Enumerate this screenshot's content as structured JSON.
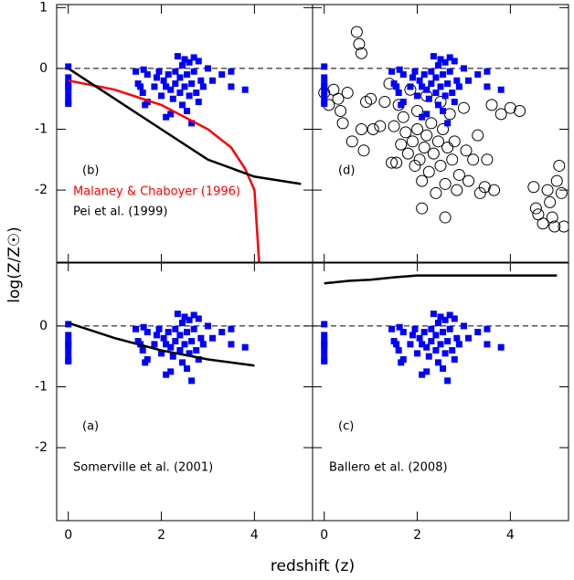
{
  "xlabel": "redshift (z)",
  "ylabel": "log(Z/Z☉)",
  "chart_data": [
    {
      "type": "scatter",
      "label": "(b)",
      "xlim": [
        -0.25,
        5.25
      ],
      "ylim": [
        -3.2,
        1.05
      ],
      "xticks": [
        0,
        2,
        4
      ],
      "yticks": [
        -2,
        -1,
        0,
        1
      ],
      "show_xticklabels": false,
      "show_yticklabels": true,
      "reference_line": 0,
      "series": [
        {
          "marker": "square",
          "color": "#0000ff",
          "x": [
            0,
            0,
            0,
            0,
            0,
            0,
            0,
            0,
            1.45,
            1.5,
            1.55,
            1.6,
            1.62,
            1.7,
            1.7,
            1.65,
            1.85,
            1.9,
            1.95,
            2.0,
            2.05,
            2.1,
            2.1,
            2.15,
            2.2,
            2.2,
            2.25,
            2.3,
            2.3,
            2.35,
            2.4,
            2.4,
            2.45,
            2.45,
            2.5,
            2.5,
            2.55,
            2.55,
            2.6,
            2.6,
            2.65,
            2.65,
            2.7,
            2.7,
            2.75,
            2.8,
            2.8,
            2.85,
            2.9,
            3.0,
            3.1,
            3.3,
            3.5,
            3.5,
            3.8
          ],
          "values": [
            0.03,
            -0.15,
            -0.25,
            -0.3,
            -0.35,
            -0.45,
            -0.55,
            -0.58,
            -0.05,
            -0.25,
            -0.3,
            -0.4,
            -0.02,
            -0.1,
            -0.55,
            -0.6,
            -0.3,
            -0.15,
            -0.05,
            -0.45,
            -0.2,
            -0.3,
            -0.8,
            -0.1,
            -0.35,
            -0.75,
            -0.5,
            -0.25,
            -0.05,
            0.2,
            -0.15,
            -0.4,
            0.05,
            -0.6,
            -0.3,
            0.15,
            -0.1,
            -0.7,
            0.1,
            -0.45,
            -0.25,
            -0.9,
            0.18,
            -0.05,
            -0.4,
            0.12,
            -0.55,
            -0.2,
            -0.3,
            0,
            -0.2,
            -0.1,
            -0.05,
            -0.3,
            -0.35
          ]
        },
        {
          "name": "Malaney & Chaboyer (1996)",
          "color": "#ff0000",
          "x": [
            0,
            1,
            2,
            3,
            3.5,
            3.8,
            4,
            4.1
          ],
          "values": [
            -0.2,
            -0.35,
            -0.6,
            -1.0,
            -1.3,
            -1.65,
            -2.0,
            -3.2
          ]
        },
        {
          "name": "Pei et al. (1999)",
          "color": "#000000",
          "x": [
            0,
            1,
            1.5,
            2,
            3,
            4,
            5
          ],
          "values": [
            0,
            -0.5,
            -0.75,
            -1.0,
            -1.5,
            -1.78,
            -1.9
          ]
        }
      ]
    },
    {
      "type": "scatter",
      "label": "(d)",
      "xlim": [
        -0.25,
        5.25
      ],
      "ylim": [
        -3.2,
        1.05
      ],
      "xticks": [
        0,
        2,
        4
      ],
      "yticks": [
        -2,
        -1,
        0,
        1
      ],
      "show_xticklabels": false,
      "show_yticklabels": false,
      "reference_line": 0,
      "series": [
        {
          "marker": "circle",
          "color": "#000000",
          "x": [
            0,
            0.1,
            0.2,
            0.3,
            0.35,
            0.4,
            0.5,
            0.6,
            0.7,
            0.75,
            0.8,
            0.8,
            0.85,
            0.9,
            1.0,
            1.05,
            1.2,
            1.3,
            1.4,
            1.45,
            1.5,
            1.55,
            1.6,
            1.65,
            1.7,
            1.75,
            1.8,
            1.85,
            1.9,
            1.95,
            2.0,
            2.0,
            2.05,
            2.1,
            2.1,
            2.15,
            2.2,
            2.2,
            2.25,
            2.3,
            2.35,
            2.4,
            2.45,
            2.5,
            2.5,
            2.55,
            2.6,
            2.6,
            2.65,
            2.7,
            2.75,
            2.8,
            2.85,
            2.9,
            3.0,
            3.05,
            3.1,
            3.2,
            3.3,
            3.35,
            3.45,
            3.5,
            3.6,
            3.65,
            3.8,
            4.0,
            4.2,
            4.5,
            4.55,
            4.6,
            4.7,
            4.8,
            4.85,
            4.9,
            4.95,
            5.0,
            5.05,
            5.1,
            5.15
          ],
          "values": [
            -0.4,
            -0.6,
            -0.35,
            -0.5,
            -0.7,
            -0.9,
            -0.4,
            -1.2,
            0.6,
            0.4,
            0.25,
            -1.0,
            -1.35,
            -0.55,
            -0.5,
            -1.0,
            -0.95,
            -0.55,
            -0.25,
            -1.55,
            -0.95,
            -1.55,
            -0.6,
            -1.25,
            -0.8,
            -1.05,
            -1.4,
            -0.35,
            -1.2,
            -1.6,
            -0.7,
            -1.0,
            -1.5,
            -1.85,
            -2.3,
            -1.3,
            -0.45,
            -1.1,
            -1.7,
            -0.9,
            -1.4,
            -2.05,
            -1.2,
            -0.55,
            -1.6,
            -1.0,
            -1.9,
            -2.45,
            -1.3,
            -0.75,
            -1.5,
            -1.2,
            -2.0,
            -1.75,
            -0.65,
            -1.35,
            -1.85,
            -1.5,
            -1.1,
            -2.05,
            -1.95,
            -1.5,
            -0.6,
            -2.0,
            -0.75,
            -0.65,
            -0.7,
            -1.95,
            -2.3,
            -2.4,
            -2.55,
            -2.0,
            -2.2,
            -2.45,
            -2.6,
            -1.85,
            -1.6,
            -2.05,
            -2.6
          ]
        },
        {
          "marker": "square",
          "color": "#0000ff",
          "x": [
            0,
            0,
            0,
            0,
            0,
            0,
            0,
            0,
            1.45,
            1.5,
            1.55,
            1.6,
            1.62,
            1.7,
            1.7,
            1.65,
            1.85,
            1.9,
            1.95,
            2.0,
            2.05,
            2.1,
            2.1,
            2.15,
            2.2,
            2.2,
            2.25,
            2.3,
            2.3,
            2.35,
            2.4,
            2.4,
            2.45,
            2.45,
            2.5,
            2.5,
            2.55,
            2.55,
            2.6,
            2.6,
            2.65,
            2.65,
            2.7,
            2.7,
            2.75,
            2.8,
            2.8,
            2.85,
            2.9,
            3.0,
            3.1,
            3.3,
            3.5,
            3.5,
            3.8
          ],
          "values": [
            0.03,
            -0.15,
            -0.25,
            -0.3,
            -0.35,
            -0.45,
            -0.55,
            -0.58,
            -0.05,
            -0.25,
            -0.3,
            -0.4,
            -0.02,
            -0.1,
            -0.55,
            -0.6,
            -0.3,
            -0.15,
            -0.05,
            -0.45,
            -0.2,
            -0.3,
            -0.8,
            -0.1,
            -0.35,
            -0.75,
            -0.5,
            -0.25,
            -0.05,
            0.2,
            -0.15,
            -0.4,
            0.05,
            -0.6,
            -0.3,
            0.15,
            -0.1,
            -0.7,
            0.1,
            -0.45,
            -0.25,
            -0.9,
            0.18,
            -0.05,
            -0.4,
            0.12,
            -0.55,
            -0.2,
            -0.3,
            0,
            -0.2,
            -0.1,
            -0.05,
            -0.3,
            -0.35
          ]
        }
      ]
    },
    {
      "type": "scatter",
      "label": "(a)",
      "xlim": [
        -0.25,
        5.25
      ],
      "ylim": [
        -3.2,
        1.05
      ],
      "xticks": [
        0,
        2,
        4
      ],
      "yticks": [
        -2,
        -1,
        0
      ],
      "show_xticklabels": true,
      "show_yticklabels": true,
      "reference_line": 0,
      "series": [
        {
          "marker": "square",
          "color": "#0000ff",
          "x": [
            0,
            0,
            0,
            0,
            0,
            0,
            0,
            0,
            1.45,
            1.5,
            1.55,
            1.6,
            1.62,
            1.7,
            1.7,
            1.65,
            1.85,
            1.9,
            1.95,
            2.0,
            2.05,
            2.1,
            2.1,
            2.15,
            2.2,
            2.2,
            2.25,
            2.3,
            2.3,
            2.35,
            2.4,
            2.4,
            2.45,
            2.45,
            2.5,
            2.5,
            2.55,
            2.55,
            2.6,
            2.6,
            2.65,
            2.65,
            2.7,
            2.7,
            2.75,
            2.8,
            2.8,
            2.85,
            2.9,
            3.0,
            3.1,
            3.3,
            3.5,
            3.5,
            3.8
          ],
          "values": [
            0.03,
            -0.15,
            -0.25,
            -0.3,
            -0.35,
            -0.45,
            -0.55,
            -0.58,
            -0.05,
            -0.25,
            -0.3,
            -0.4,
            -0.02,
            -0.1,
            -0.55,
            -0.6,
            -0.3,
            -0.15,
            -0.05,
            -0.45,
            -0.2,
            -0.3,
            -0.8,
            -0.1,
            -0.35,
            -0.75,
            -0.5,
            -0.25,
            -0.05,
            0.2,
            -0.15,
            -0.4,
            0.05,
            -0.6,
            -0.3,
            0.15,
            -0.1,
            -0.7,
            0.1,
            -0.45,
            -0.25,
            -0.9,
            0.18,
            -0.05,
            -0.4,
            0.12,
            -0.55,
            -0.2,
            -0.3,
            0,
            -0.2,
            -0.1,
            -0.05,
            -0.3,
            -0.35
          ]
        },
        {
          "name": "Somerville et al. (2001)",
          "color": "#000000",
          "x": [
            0,
            1,
            2,
            3,
            4
          ],
          "values": [
            0.05,
            -0.2,
            -0.4,
            -0.55,
            -0.65
          ]
        }
      ]
    },
    {
      "type": "scatter",
      "label": "(c)",
      "xlim": [
        -0.25,
        5.25
      ],
      "ylim": [
        -3.2,
        1.05
      ],
      "xticks": [
        0,
        2,
        4
      ],
      "yticks": [
        -2,
        -1,
        0
      ],
      "show_xticklabels": true,
      "show_yticklabels": false,
      "reference_line": 0,
      "series": [
        {
          "marker": "square",
          "color": "#0000ff",
          "x": [
            0,
            0,
            0,
            0,
            0,
            0,
            0,
            0,
            1.45,
            1.5,
            1.55,
            1.6,
            1.62,
            1.7,
            1.7,
            1.65,
            1.85,
            1.9,
            1.95,
            2.0,
            2.05,
            2.1,
            2.1,
            2.15,
            2.2,
            2.2,
            2.25,
            2.3,
            2.3,
            2.35,
            2.4,
            2.4,
            2.45,
            2.45,
            2.5,
            2.5,
            2.55,
            2.55,
            2.6,
            2.6,
            2.65,
            2.65,
            2.7,
            2.7,
            2.75,
            2.8,
            2.8,
            2.85,
            2.9,
            3.0,
            3.1,
            3.3,
            3.5,
            3.5,
            3.8
          ],
          "values": [
            0.03,
            -0.15,
            -0.25,
            -0.3,
            -0.35,
            -0.45,
            -0.55,
            -0.58,
            -0.05,
            -0.25,
            -0.3,
            -0.4,
            -0.02,
            -0.1,
            -0.55,
            -0.6,
            -0.3,
            -0.15,
            -0.05,
            -0.45,
            -0.2,
            -0.3,
            -0.8,
            -0.1,
            -0.35,
            -0.75,
            -0.5,
            -0.25,
            -0.05,
            0.2,
            -0.15,
            -0.4,
            0.05,
            -0.6,
            -0.3,
            0.15,
            -0.1,
            -0.7,
            0.1,
            -0.45,
            -0.25,
            -0.9,
            0.18,
            -0.05,
            -0.4,
            0.12,
            -0.55,
            -0.2,
            -0.3,
            0,
            -0.2,
            -0.1,
            -0.05,
            -0.3,
            -0.35
          ]
        },
        {
          "name": "Ballero et al. (2008)",
          "color": "#000000",
          "x": [
            0,
            0.5,
            1,
            1.5,
            2,
            3,
            4,
            5
          ],
          "values": [
            0.7,
            0.74,
            0.76,
            0.8,
            0.83,
            0.83,
            0.83,
            0.83
          ]
        }
      ]
    }
  ]
}
